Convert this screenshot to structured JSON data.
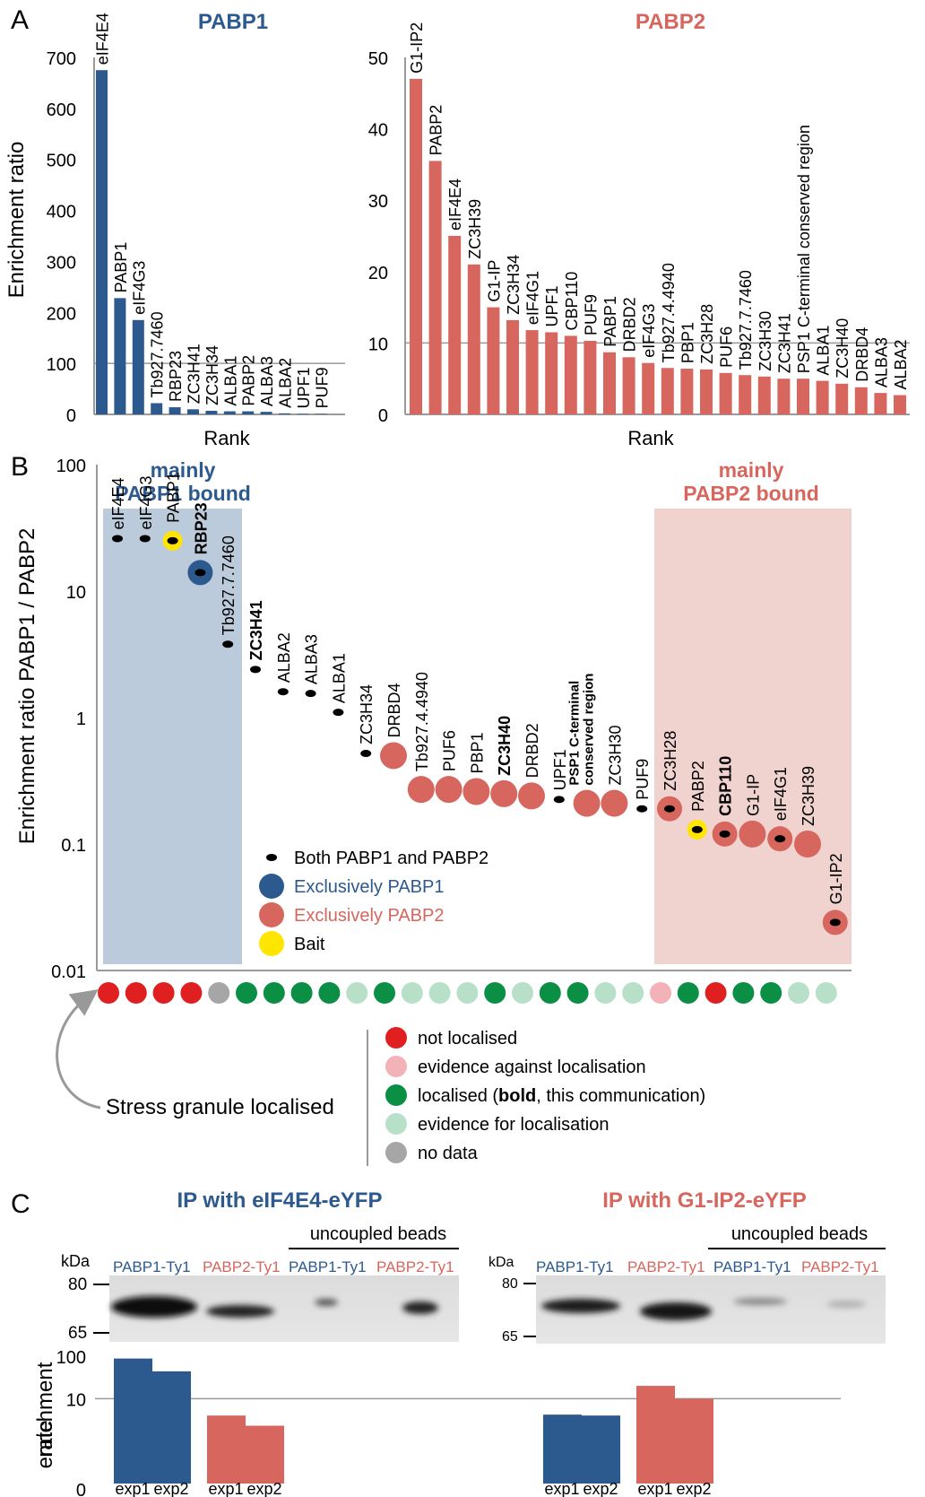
{
  "panels": {
    "a": "A",
    "b": "B",
    "c": "C"
  },
  "colors": {
    "blue": "#2c5a8e",
    "red": "#d6665e",
    "yellow": "#ffe500",
    "not_localised": "#e02020",
    "evidence_against": "#f3b2b8",
    "localised": "#0a8f45",
    "evidence_for": "#b8e0c8",
    "no_data": "#a6a6a6",
    "box_blue": "#bccbdc",
    "box_red": "#f0d2cf"
  },
  "panel_a": {
    "y_axis_label": "Enrichment ratio",
    "chart_data": [
      {
        "type": "bar",
        "title": "PABP1",
        "xlabel": "Rank",
        "ylabel": "Enrichment ratio",
        "ylim": [
          0,
          700
        ],
        "y_ticks": [
          "0",
          "100",
          "200",
          "300",
          "400",
          "500",
          "600",
          "700"
        ],
        "grid": "horizontal line at 100",
        "categories": [
          "eIF4E4",
          "PABP1",
          "eIF4G3",
          "Tb927.7460",
          "RBP23",
          "ZC3H41",
          "ZC3H34",
          "ALBA1",
          "PABP2",
          "ALBA3",
          "ALBA2",
          "UPF1",
          "PUF9"
        ],
        "values": [
          675,
          228,
          185,
          22,
          14,
          10,
          7,
          6,
          6,
          5,
          2,
          1,
          1
        ],
        "color": "#2c5a8e"
      },
      {
        "type": "bar",
        "title": "PABP2",
        "xlabel": "Rank",
        "ylabel": "Enrichment ratio",
        "ylim": [
          0,
          50
        ],
        "y_ticks": [
          "0",
          "10",
          "20",
          "30",
          "40",
          "50"
        ],
        "grid": "horizontal line at 10",
        "categories": [
          "G1-IP2",
          "PABP2",
          "eIF4E4",
          "ZC3H39",
          "G1-IP",
          "ZC3H34",
          "eIF4G1",
          "UPF1",
          "CBP110",
          "PUF9",
          "PABP1",
          "DRBD2",
          "eIF4G3",
          "Tb927.4.4940",
          "PBP1",
          "ZC3H28",
          "PUF6",
          "Tb927.7.7460",
          "ZC3H30",
          "ZC3H41",
          "PSP1 C-terminal conserved region",
          "ALBA1",
          "ZC3H40",
          "DRBD4",
          "ALBA3",
          "ALBA2"
        ],
        "values": [
          47,
          35.5,
          25,
          21,
          15,
          13.2,
          11.8,
          11.5,
          11,
          10.3,
          8.7,
          8,
          7.2,
          6.5,
          6.4,
          6.3,
          5.8,
          5.5,
          5.3,
          5,
          5,
          4.7,
          4.3,
          3.8,
          3,
          2.7
        ],
        "color": "#d6665e"
      }
    ]
  },
  "panel_b": {
    "chart_data": {
      "type": "scatter",
      "ylabel": "Enrichment ratio PABP1 / PABP2",
      "y_scale": "log",
      "ylim": [
        0.01,
        100
      ],
      "y_ticks": [
        "100",
        "10",
        "1",
        "0.1",
        "0.01"
      ],
      "region_left": "mainly\nPABP1 bound",
      "region_right": "mainly\nPABP2 bound",
      "region_left_lines": [
        "mainly",
        "PABP1 bound"
      ],
      "region_right_lines": [
        "mainly",
        "PABP2 bound"
      ],
      "points": [
        {
          "label": "eIF4E4",
          "y": 26,
          "type": "both",
          "bold": false,
          "sg": "not"
        },
        {
          "label": "eIF4G3",
          "y": 26,
          "type": "both",
          "bold": false,
          "sg": "not"
        },
        {
          "label": "PABP1",
          "y": 25,
          "type": "bait",
          "bold": false,
          "sg": "not"
        },
        {
          "label": "RBP23",
          "y": 14,
          "type": "pabp1",
          "bold": true,
          "sg": "not"
        },
        {
          "label": "Tb927.7.7460",
          "y": 3.8,
          "type": "both",
          "bold": false,
          "sg": "nodata"
        },
        {
          "label": "ZC3H41",
          "y": 2.4,
          "type": "both",
          "bold": true,
          "sg": "loc"
        },
        {
          "label": "ALBA2",
          "y": 1.6,
          "type": "both",
          "bold": false,
          "sg": "loc"
        },
        {
          "label": "ALBA3",
          "y": 1.55,
          "type": "both",
          "bold": false,
          "sg": "loc"
        },
        {
          "label": "ALBA1",
          "y": 1.1,
          "type": "both",
          "bold": false,
          "sg": "loc"
        },
        {
          "label": "ZC3H34",
          "y": 0.52,
          "type": "both",
          "bold": false,
          "sg": "for"
        },
        {
          "label": "DRBD4",
          "y": 0.5,
          "type": "pabp2",
          "bold": false,
          "sg": "loc"
        },
        {
          "label": "Tb927.4.4940",
          "y": 0.27,
          "type": "pabp2",
          "bold": false,
          "sg": "for"
        },
        {
          "label": "PUF6",
          "y": 0.27,
          "type": "pabp2",
          "bold": false,
          "sg": "for"
        },
        {
          "label": "PBP1",
          "y": 0.26,
          "type": "pabp2",
          "bold": false,
          "sg": "for"
        },
        {
          "label": "ZC3H40",
          "y": 0.25,
          "type": "pabp2",
          "bold": true,
          "sg": "loc"
        },
        {
          "label": "DRBD2",
          "y": 0.24,
          "type": "pabp2",
          "bold": false,
          "sg": "for"
        },
        {
          "label": "UPF1",
          "y": 0.225,
          "type": "both",
          "bold": false,
          "sg": "loc"
        },
        {
          "label": "PSP1 C-terminal\nconserved region",
          "y": 0.21,
          "type": "pabp2",
          "bold": true,
          "sg": "loc"
        },
        {
          "label": "ZC3H30",
          "y": 0.21,
          "type": "pabp2",
          "bold": false,
          "sg": "for"
        },
        {
          "label": "PUF9",
          "y": 0.19,
          "type": "both",
          "bold": false,
          "sg": "for"
        },
        {
          "label": "ZC3H28",
          "y": 0.19,
          "type": "both-ring",
          "bold": false,
          "sg": "against"
        },
        {
          "label": "PABP2",
          "y": 0.13,
          "type": "bait",
          "bold": false,
          "sg": "loc"
        },
        {
          "label": "CBP110",
          "y": 0.12,
          "type": "both-ring",
          "bold": true,
          "sg": "not"
        },
        {
          "label": "G1-IP",
          "y": 0.12,
          "type": "pabp2",
          "bold": false,
          "sg": "loc"
        },
        {
          "label": "eIF4G1",
          "y": 0.11,
          "type": "both-ring",
          "bold": false,
          "sg": "loc"
        },
        {
          "label": "ZC3H39",
          "y": 0.1,
          "type": "pabp2",
          "bold": false,
          "sg": "for"
        },
        {
          "label": "G1-IP2",
          "y": 0.024,
          "type": "both-ring",
          "bold": false,
          "sg": "for"
        }
      ]
    },
    "legend": [
      {
        "key": "both",
        "label": "Both PABP1 and PABP2"
      },
      {
        "key": "pabp1",
        "label": "Exclusively PABP1"
      },
      {
        "key": "pabp2",
        "label": "Exclusively PABP2"
      },
      {
        "key": "bait",
        "label": "Bait"
      }
    ],
    "sg_label": "Stress granule localised",
    "sg_legend": [
      {
        "key": "not",
        "label": "not localised"
      },
      {
        "key": "against",
        "label": "evidence against localisation"
      },
      {
        "key": "loc",
        "label": "localised (",
        "bold": "bold",
        "rest": ", this communication)"
      },
      {
        "key": "for",
        "label": "evidence for localisation"
      },
      {
        "key": "nodata",
        "label": "no data"
      }
    ]
  },
  "panel_c": {
    "left": {
      "title": "IP with eIF4E4-eYFP",
      "uncoupled": "uncoupled beads",
      "kda": "kDa",
      "markers": [
        "80",
        "65"
      ],
      "lanes": [
        "PABP1-Ty1",
        "PABP2-Ty1",
        "PABP1-Ty1",
        "PABP2-Ty1"
      ]
    },
    "right": {
      "title": "IP with G1-IP2-eYFP",
      "uncoupled": "uncoupled beads",
      "kda": "kDa",
      "markers": [
        "80",
        "65"
      ],
      "lanes": [
        "PABP1-Ty1",
        "PABP2-Ty1",
        "PABP1-Ty1",
        "PABP2-Ty1"
      ]
    },
    "chart_data": {
      "type": "bar",
      "ylabel": "enrichment\nrate",
      "ylabel_lines": [
        "enrichment",
        "rate"
      ],
      "y_scale": "log",
      "y_ticks": [
        "100",
        "10",
        "0"
      ],
      "grid": "horizontal line at 10",
      "groups": [
        {
          "ip": "IP with eIF4E4-eYFP",
          "protein": "PABP1-Ty1",
          "color": "#2c5a8e",
          "x": [
            "exp1",
            "exp2"
          ],
          "values": [
            88,
            44
          ]
        },
        {
          "ip": "IP with eIF4E4-eYFP",
          "protein": "PABP2-Ty1",
          "color": "#d6665e",
          "x": [
            "exp1",
            "exp2"
          ],
          "values": [
            4,
            2.3
          ]
        },
        {
          "ip": "IP with G1-IP2-eYFP",
          "protein": "PABP1-Ty1",
          "color": "#2c5a8e",
          "x": [
            "exp1",
            "exp2"
          ],
          "values": [
            4.2,
            4
          ]
        },
        {
          "ip": "IP with G1-IP2-eYFP",
          "protein": "PABP2-Ty1",
          "color": "#d6665e",
          "x": [
            "exp1",
            "exp2"
          ],
          "values": [
            20,
            10
          ]
        }
      ]
    }
  }
}
